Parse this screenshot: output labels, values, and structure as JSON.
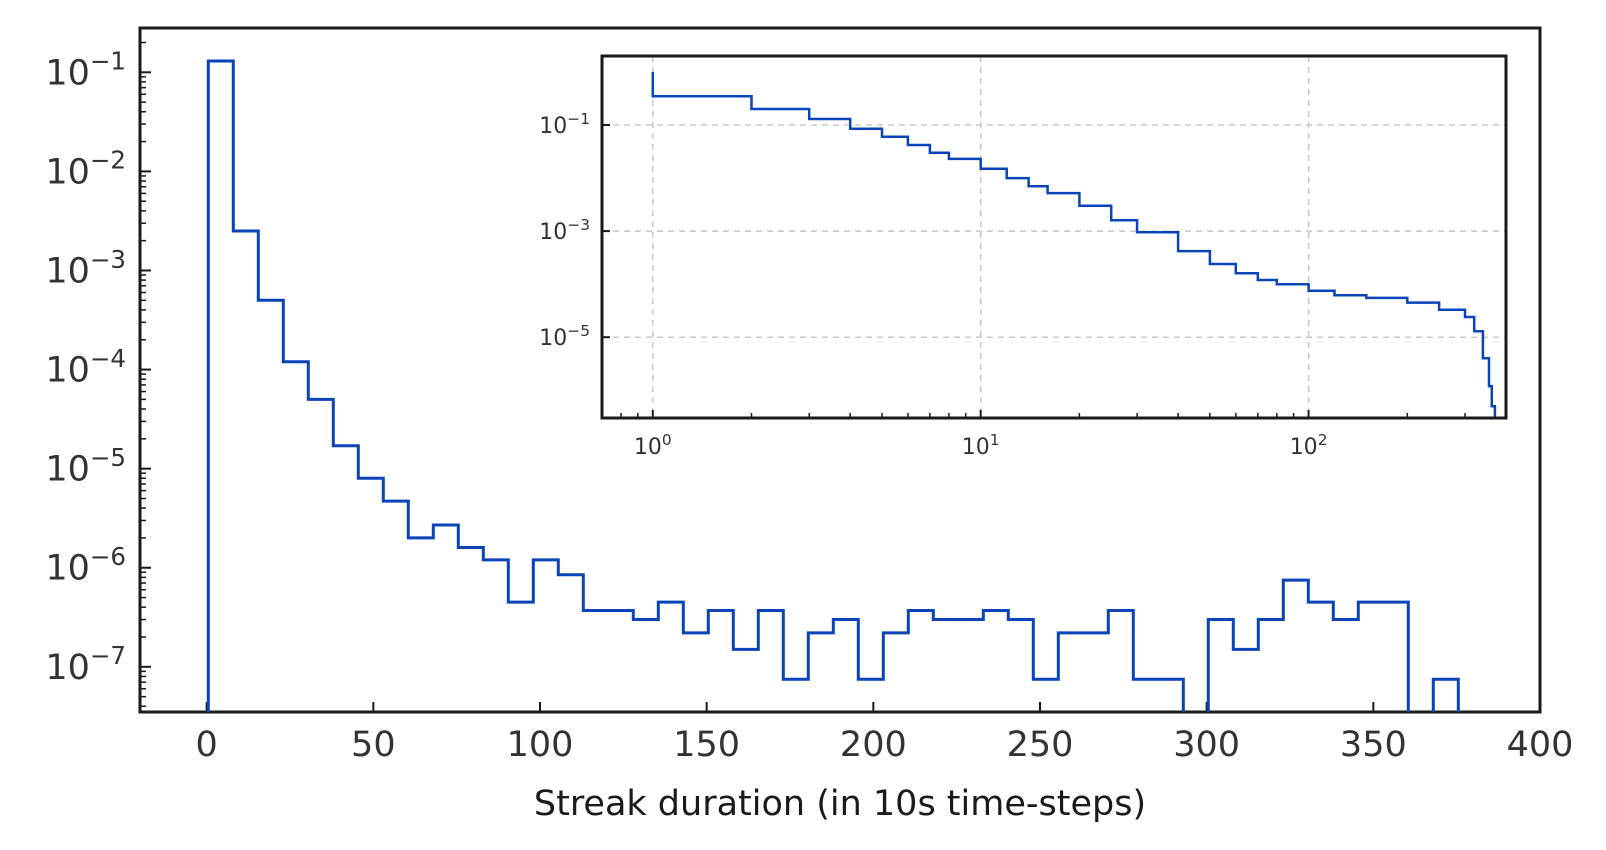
{
  "chart_data": [
    {
      "type": "histogram-step",
      "xlabel": "Streak duration (in 10s time-steps)",
      "ylabel": "",
      "title": "",
      "x_scale": "linear",
      "y_scale": "log",
      "xlim": [
        -20,
        400
      ],
      "ylim": [
        3.5e-08,
        0.28
      ],
      "grid": false,
      "x_ticks": [
        0,
        50,
        100,
        150,
        200,
        250,
        300,
        350,
        400
      ],
      "x_tick_labels": [
        "0",
        "50",
        "100",
        "150",
        "200",
        "250",
        "300",
        "350",
        "400"
      ],
      "y_ticks": [
        1e-07,
        1e-06,
        1e-05,
        0.0001,
        0.001,
        0.01,
        0.1
      ],
      "y_tick_labels": [
        {
          "base": "10",
          "exp": "−7"
        },
        {
          "base": "10",
          "exp": "−6"
        },
        {
          "base": "10",
          "exp": "−5"
        },
        {
          "base": "10",
          "exp": "−4"
        },
        {
          "base": "10",
          "exp": "−3"
        },
        {
          "base": "10",
          "exp": "−2"
        },
        {
          "base": "10",
          "exp": "−1"
        }
      ],
      "color": "#0a44b8",
      "bin_edges": [
        0.5,
        8,
        15.5,
        23,
        30.5,
        38,
        45.5,
        53,
        60.5,
        68,
        75.5,
        83,
        90.5,
        98,
        105.5,
        113,
        120.5,
        128,
        135.5,
        143,
        150.5,
        158,
        165.5,
        173,
        180.5,
        188,
        195.5,
        203,
        210.5,
        218,
        225.5,
        233,
        240.5,
        248,
        255.5,
        263,
        270.5,
        278,
        285.5,
        293,
        300.5,
        308,
        315.5,
        323,
        330.5,
        338,
        345.5,
        353,
        360.5,
        368,
        375.5
      ],
      "values": [
        0.13,
        0.0025,
        0.0005,
        0.00012,
        5e-05,
        1.7e-05,
        8e-06,
        4.7e-06,
        2e-06,
        2.7e-06,
        1.6e-06,
        1.2e-06,
        4.5e-07,
        1.2e-06,
        8.5e-07,
        3.7e-07,
        3.7e-07,
        3e-07,
        4.5e-07,
        2.2e-07,
        3.7e-07,
        1.5e-07,
        3.7e-07,
        7.5e-08,
        2.2e-07,
        3e-07,
        7.5e-08,
        2.2e-07,
        3.7e-07,
        3e-07,
        3e-07,
        3.7e-07,
        3e-07,
        7.5e-08,
        2.2e-07,
        2.2e-07,
        3.7e-07,
        7.5e-08,
        7.5e-08,
        0,
        3e-07,
        1.5e-07,
        3e-07,
        7.5e-07,
        4.5e-07,
        3e-07,
        4.5e-07,
        4.5e-07,
        0,
        7.5e-08
      ]
    },
    {
      "type": "line-step",
      "title": "",
      "xlabel": "",
      "ylabel": "",
      "x_scale": "log",
      "y_scale": "log",
      "xlim": [
        0.7,
        400
      ],
      "ylim": [
        3e-07,
        2
      ],
      "grid": true,
      "x_ticks": [
        1,
        10,
        100
      ],
      "x_tick_labels": [
        {
          "base": "10",
          "exp": "0"
        },
        {
          "base": "10",
          "exp": "1"
        },
        {
          "base": "10",
          "exp": "2"
        }
      ],
      "y_ticks": [
        1e-05,
        0.001,
        0.1
      ],
      "y_tick_labels": [
        {
          "base": "10",
          "exp": "−5"
        },
        {
          "base": "10",
          "exp": "−3"
        },
        {
          "base": "10",
          "exp": "−1"
        }
      ],
      "color": "#0a44b8",
      "x": [
        1,
        1,
        2,
        3,
        4,
        5,
        6,
        7,
        8,
        10,
        12,
        14,
        16,
        20,
        25,
        30,
        40,
        50,
        60,
        70,
        80,
        100,
        120,
        150,
        200,
        250,
        300,
        320,
        340,
        355,
        362,
        370
      ],
      "y": [
        1.0,
        0.35,
        0.2,
        0.13,
        0.085,
        0.06,
        0.042,
        0.03,
        0.023,
        0.015,
        0.01,
        0.007,
        0.0052,
        0.003,
        0.0016,
        0.00095,
        0.00042,
        0.00024,
        0.00016,
        0.00012,
        0.0001,
        7.5e-05,
        6.2e-05,
        5.5e-05,
        4.5e-05,
        3.3e-05,
        2.4e-05,
        1.3e-05,
        4e-06,
        1.2e-06,
        5e-07,
        5e-07
      ]
    }
  ]
}
